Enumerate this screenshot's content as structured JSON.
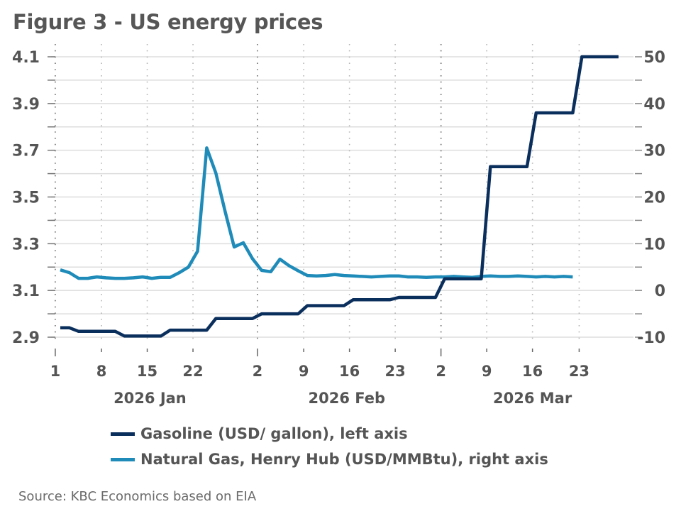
{
  "chart_data": {
    "type": "line",
    "title": "Figure 3 - US energy prices",
    "source": "Source: KBC Economics based on EIA",
    "x_unit": "business-day index (0 = 2 Jan 2026)",
    "x_range": [
      -0.6,
      62
    ],
    "x_ticks": [
      {
        "label": "1",
        "pos": -0.55,
        "major": true
      },
      {
        "label": "8",
        "pos": 4.5,
        "major": false
      },
      {
        "label": "15",
        "pos": 9.5,
        "major": false
      },
      {
        "label": "22",
        "pos": 14.5,
        "major": false
      },
      {
        "label": "2",
        "pos": 21.55,
        "major": true
      },
      {
        "label": "9",
        "pos": 26.6,
        "major": false
      },
      {
        "label": "16",
        "pos": 31.6,
        "major": false
      },
      {
        "label": "23",
        "pos": 36.6,
        "major": false
      },
      {
        "label": "2",
        "pos": 41.6,
        "major": true
      },
      {
        "label": "9",
        "pos": 46.6,
        "major": false
      },
      {
        "label": "16",
        "pos": 51.6,
        "major": false
      },
      {
        "label": "23",
        "pos": 56.7,
        "major": false
      }
    ],
    "month_labels": [
      {
        "label": "2026 Jan",
        "pos": 9.8
      },
      {
        "label": "2026 Feb",
        "pos": 31.3
      },
      {
        "label": "2026 Mar",
        "pos": 51.6
      }
    ],
    "y_left": {
      "label": "Gasoline (USD/ gallon)",
      "range": [
        2.9,
        4.1
      ],
      "ticks": [
        "2.9",
        "3.1",
        "3.3",
        "3.5",
        "3.7",
        "3.9",
        "4.1"
      ],
      "minor_step": 0.1
    },
    "y_right": {
      "label": "Natural Gas (USD/MMBtu)",
      "range": [
        -10,
        50
      ],
      "ticks": [
        "-10",
        "0",
        "10",
        "20",
        "30",
        "40",
        "50"
      ],
      "minor_step": 5
    },
    "grid": true,
    "legend_position": "bottom",
    "series": [
      {
        "name": "Gasoline (USD/ gallon), left axis",
        "axis": "left",
        "color": "#0b2f5d",
        "values": [
          2.94,
          2.94,
          2.925,
          2.925,
          2.925,
          2.925,
          2.925,
          2.905,
          2.905,
          2.905,
          2.905,
          2.905,
          2.93,
          2.93,
          2.93,
          2.93,
          2.93,
          2.98,
          2.98,
          2.98,
          2.98,
          2.98,
          3.0,
          3.0,
          3.0,
          3.0,
          3.0,
          3.035,
          3.035,
          3.035,
          3.035,
          3.035,
          3.06,
          3.06,
          3.06,
          3.06,
          3.06,
          3.07,
          3.07,
          3.07,
          3.07,
          3.07,
          3.15,
          3.15,
          3.15,
          3.15,
          3.15,
          3.63,
          3.63,
          3.63,
          3.63,
          3.63,
          3.86,
          3.86,
          3.86,
          3.86,
          3.86,
          4.1,
          4.1,
          4.1,
          4.1,
          4.1
        ]
      },
      {
        "name": "Natural Gas, Henry Hub (USD/MMBtu), right axis",
        "axis": "right",
        "color": "#1f8bb9",
        "values": [
          4.4,
          3.8,
          2.6,
          2.6,
          2.9,
          2.7,
          2.6,
          2.6,
          2.7,
          2.9,
          2.6,
          2.8,
          2.8,
          3.8,
          5.0,
          8.4,
          30.5,
          25.1,
          17.0,
          9.3,
          10.2,
          6.8,
          4.3,
          4.0,
          6.7,
          5.3,
          4.2,
          3.2,
          3.1,
          3.2,
          3.4,
          3.2,
          3.1,
          3.0,
          2.9,
          3.0,
          3.1,
          3.1,
          2.9,
          2.9,
          2.8,
          2.9,
          2.9,
          3.0,
          2.9,
          2.8,
          3.0,
          3.1,
          3.0,
          3.0,
          3.1,
          3.0,
          2.9,
          3.0,
          2.9,
          3.0,
          2.9
        ]
      }
    ]
  },
  "legend": [
    {
      "label": "Gasoline (USD/ gallon), left axis",
      "color": "#0b2f5d"
    },
    {
      "label": "Natural Gas, Henry Hub (USD/MMBtu), right axis",
      "color": "#1f8bb9"
    }
  ]
}
